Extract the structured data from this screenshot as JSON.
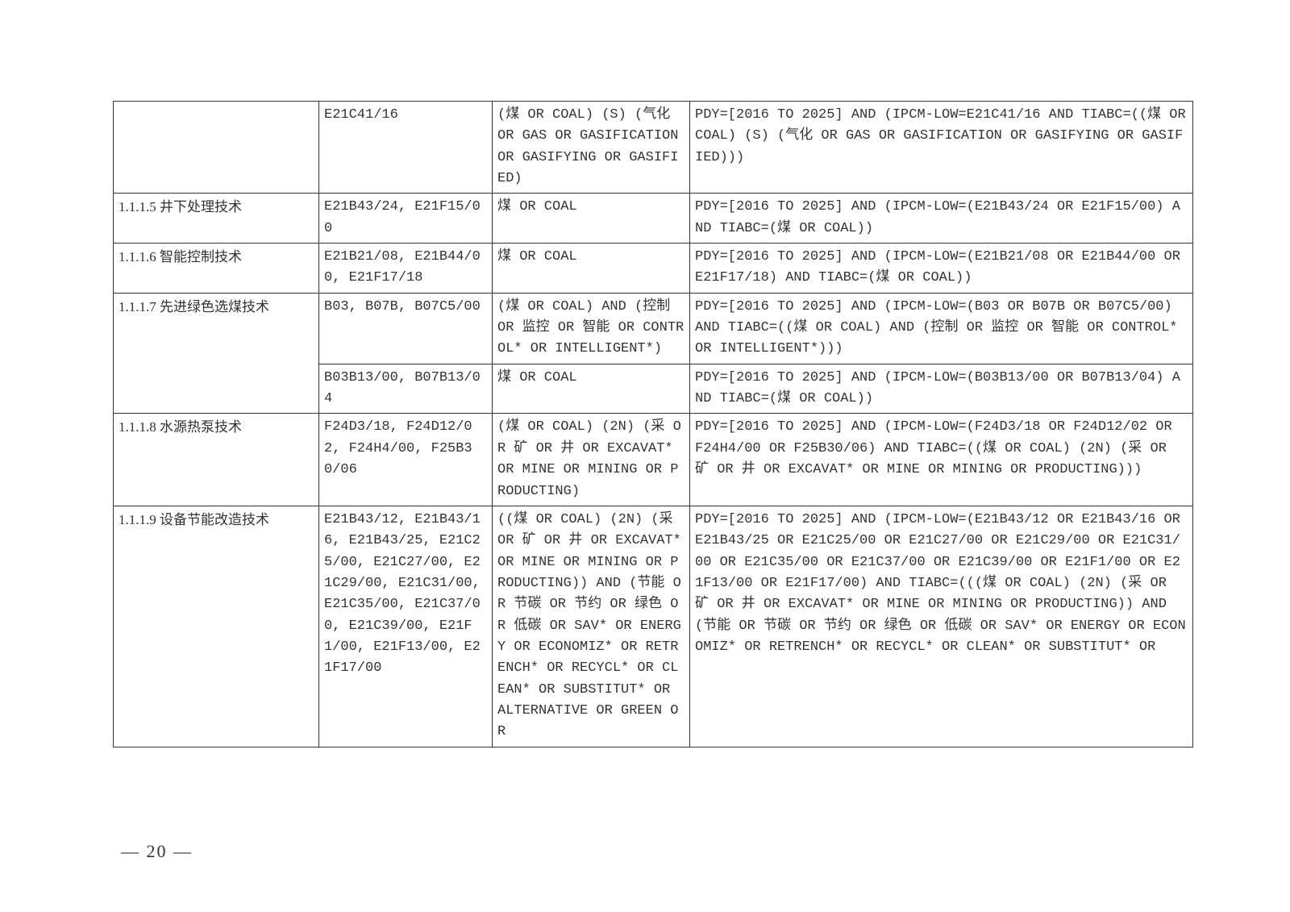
{
  "page_number": "— 20 —",
  "table": {
    "columns_count": 4,
    "rows": [
      {
        "col1": "",
        "col2": "E21C41/16",
        "col3": "(煤 OR COAL) (S) (气化 OR GAS OR GASIFICATION OR GASIFYING OR GASIFIED)",
        "col4": "PDY=[2016 TO 2025] AND (IPCM-LOW=E21C41/16 AND TIABC=((煤 OR COAL) (S) (气化 OR GAS OR GASIFICATION OR GASIFYING OR GASIFIED)))"
      },
      {
        "col1": "1.1.1.5 井下处理技术",
        "col2": "E21B43/24, E21F15/00",
        "col3": "煤 OR COAL",
        "col4": "PDY=[2016 TO 2025] AND (IPCM-LOW=(E21B43/24 OR E21F15/00)  AND TIABC=(煤 OR COAL))"
      },
      {
        "col1": "1.1.1.6 智能控制技术",
        "col2": "E21B21/08, E21B44/00, E21F17/18",
        "col3": "煤 OR COAL",
        "col4": "PDY=[2016 TO 2025] AND (IPCM-LOW=(E21B21/08 OR E21B44/00 OR E21F17/18)  AND TIABC=(煤 OR COAL))"
      },
      {
        "col1": "1.1.1.7 先进绿色选煤技术",
        "col1_rowspan": 2,
        "col2": "B03, B07B, B07C5/00",
        "col3": "(煤 OR COAL) AND (控制 OR 监控 OR 智能 OR CONTROL* OR INTELLIGENT*)",
        "col4": "PDY=[2016 TO 2025] AND (IPCM-LOW=(B03 OR B07B OR B07C5/00)  AND TIABC=((煤 OR COAL) AND (控制 OR 监控 OR 智能 OR CONTROL* OR INTELLIGENT*)))"
      },
      {
        "col1_skip": true,
        "col2": "B03B13/00, B07B13/04",
        "col3": "煤 OR COAL",
        "col4": "PDY=[2016 TO 2025] AND (IPCM-LOW=(B03B13/00 OR B07B13/04)  AND TIABC=(煤 OR COAL))"
      },
      {
        "col1": "1.1.1.8 水源热泵技术",
        "col2": "F24D3/18, F24D12/02, F24H4/00, F25B30/06",
        "col3": "(煤 OR COAL) (2N) (采 OR 矿 OR 井 OR EXCAVAT* OR MINE OR MINING OR PRODUCTING)",
        "col4": "PDY=[2016 TO 2025] AND (IPCM-LOW=(F24D3/18 OR F24D12/02 OR F24H4/00 OR F25B30/06)  AND TIABC=((煤 OR COAL) (2N) (采 OR 矿 OR 井 OR EXCAVAT* OR MINE OR MINING OR PRODUCTING)))"
      },
      {
        "col1": "1.1.1.9 设备节能改造技术",
        "col2": "E21B43/12, E21B43/16, E21B43/25, E21C25/00, E21C27/00, E21C29/00, E21C31/00, E21C35/00, E21C37/00, E21C39/00, E21F1/00, E21F13/00, E21F17/00",
        "col3": "((煤 OR COAL) (2N) (采 OR 矿 OR 井 OR EXCAVAT* OR MINE OR MINING OR PRODUCTING)) AND (节能 OR 节碳 OR 节约 OR 绿色 OR 低碳 OR SAV* OR ENERGY OR ECONOMIZ* OR RETRENCH* OR RECYCL* OR CLEAN* OR SUBSTITUT* OR ALTERNATIVE OR GREEN OR",
        "col4": "PDY=[2016 TO 2025] AND (IPCM-LOW=(E21B43/12 OR E21B43/16 OR E21B43/25 OR E21C25/00 OR E21C27/00 OR E21C29/00 OR E21C31/00 OR E21C35/00 OR E21C37/00 OR E21C39/00 OR E21F1/00 OR E21F13/00 OR E21F17/00)  AND TIABC=(((煤 OR COAL) (2N) (采 OR 矿 OR 井 OR EXCAVAT* OR MINE OR MINING OR PRODUCTING)) AND (节能 OR 节碳 OR 节约 OR 绿色 OR 低碳 OR SAV* OR ENERGY OR ECONOMIZ* OR RETRENCH* OR RECYCL* OR CLEAN* OR SUBSTITUT* OR"
      }
    ]
  }
}
